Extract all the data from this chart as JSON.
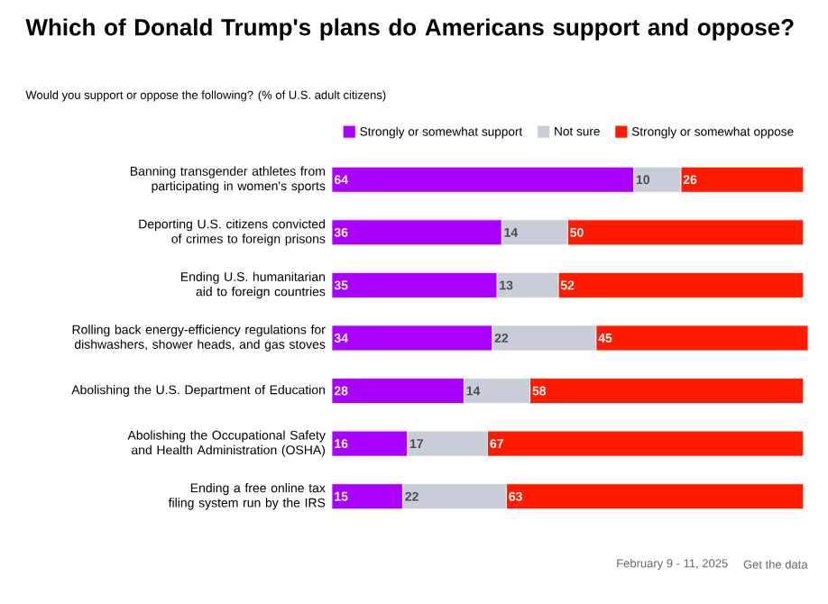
{
  "chart_data": {
    "type": "bar",
    "orientation": "horizontal",
    "stacked": true,
    "data_labels": true,
    "legend": "top",
    "title": "Which of Donald Trump's plans do Americans support and oppose?",
    "subtitle": "Would you support or oppose the following? (% of U.S. adult citizens)",
    "categories": [
      "Banning transgender athletes from participating in women's sports",
      "Deporting U.S. citizens convicted of crimes to foreign prisons",
      "Ending U.S. humanitarian aid to foreign countries",
      "Rolling back energy-efficiency regulations for dishwashers, shower heads, and gas stoves",
      "Abolishing the U.S. Department of Education",
      "Abolishing the Occupational Safety and Health Administration (OSHA)",
      "Ending a free online tax filing system run by the IRS"
    ],
    "series": [
      {
        "name": "Strongly or somewhat support",
        "color": "#aa00ff",
        "values": [
          64,
          36,
          35,
          34,
          28,
          16,
          15
        ]
      },
      {
        "name": "Not sure",
        "color": "#c9cdd8",
        "values": [
          10,
          14,
          13,
          22,
          14,
          17,
          22
        ]
      },
      {
        "name": "Strongly or somewhat oppose",
        "color": "#ff1a00",
        "values": [
          26,
          50,
          52,
          45,
          58,
          67,
          63
        ]
      }
    ],
    "annotations": [
      "February 9 - 11, 2025",
      "Get the data"
    ]
  }
}
